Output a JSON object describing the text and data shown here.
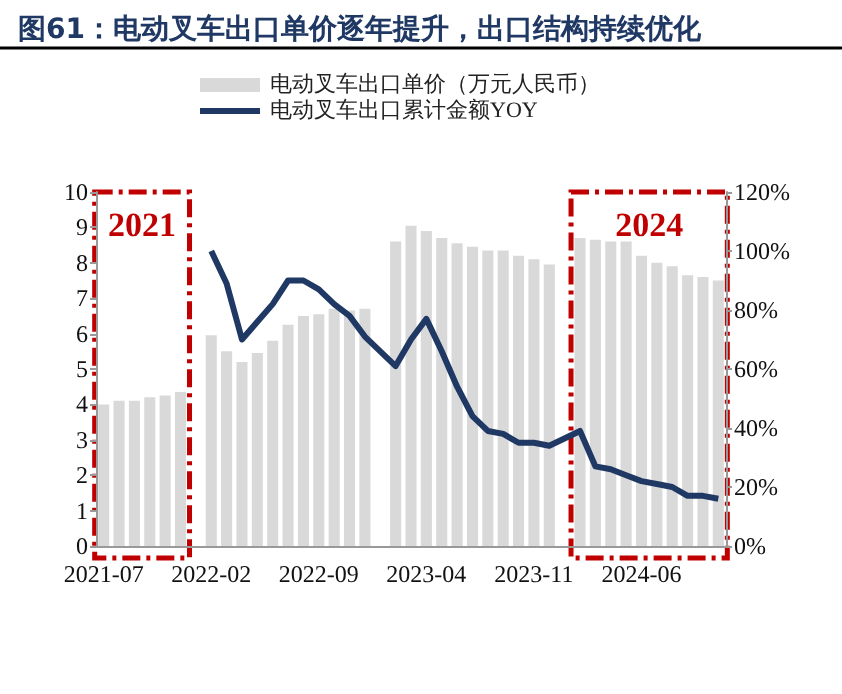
{
  "chart_data": {
    "type": "bar",
    "title": "图61：电动叉车出口单价逐年提升，出口结构持续优化",
    "categories": [
      "2021-07",
      null,
      null,
      null,
      null,
      null,
      null,
      "2022-02",
      null,
      null,
      null,
      null,
      null,
      null,
      "2022-09",
      null,
      null,
      null,
      null,
      null,
      null,
      "2023-04",
      null,
      null,
      null,
      null,
      null,
      null,
      "2023-11",
      null,
      null,
      null,
      null,
      null,
      null,
      "2024-06",
      null,
      null,
      null,
      null,
      null
    ],
    "series": [
      {
        "name": "电动叉车出口单价（万元人民币）",
        "color": "#d9d9d9",
        "values": [
          4.0,
          4.1,
          4.1,
          4.2,
          4.25,
          4.35,
          null,
          5.95,
          5.5,
          5.2,
          5.45,
          5.8,
          6.25,
          6.5,
          6.55,
          6.7,
          6.65,
          6.7,
          null,
          8.6,
          9.05,
          8.9,
          8.7,
          8.55,
          8.45,
          8.35,
          8.35,
          8.2,
          8.1,
          7.95,
          null,
          8.7,
          8.65,
          8.6,
          8.6,
          8.2,
          8.0,
          7.9,
          7.65,
          7.6,
          7.5
        ]
      },
      {
        "name": "电动叉车出口累计金额YOY",
        "type": "line",
        "axis": "y2",
        "color": "#1f3864",
        "marker": "none",
        "values": [
          null,
          null,
          null,
          null,
          null,
          null,
          null,
          100,
          89,
          70,
          76,
          82,
          90,
          90,
          87,
          82,
          78,
          71,
          null,
          61,
          70,
          77,
          66,
          54,
          44,
          39,
          38,
          35,
          35,
          34,
          null,
          39,
          27,
          26,
          24,
          22,
          21,
          20,
          17,
          17,
          16
        ]
      }
    ],
    "ylim": [
      0,
      10
    ],
    "yticks": [
      0,
      1,
      2,
      3,
      4,
      5,
      6,
      7,
      8,
      9,
      10
    ],
    "y2lim": [
      0,
      120
    ],
    "y2ticks": [
      {
        "value": 0,
        "label": "0%"
      },
      {
        "value": 20,
        "label": "20%"
      },
      {
        "value": 40,
        "label": "40%"
      },
      {
        "value": 60,
        "label": "60%"
      },
      {
        "value": 80,
        "label": "80%"
      },
      {
        "value": 100,
        "label": "100%"
      },
      {
        "value": 120,
        "label": "120%"
      }
    ],
    "annotations": [
      "2021",
      "2024"
    ],
    "legend": "top",
    "grid": false
  }
}
